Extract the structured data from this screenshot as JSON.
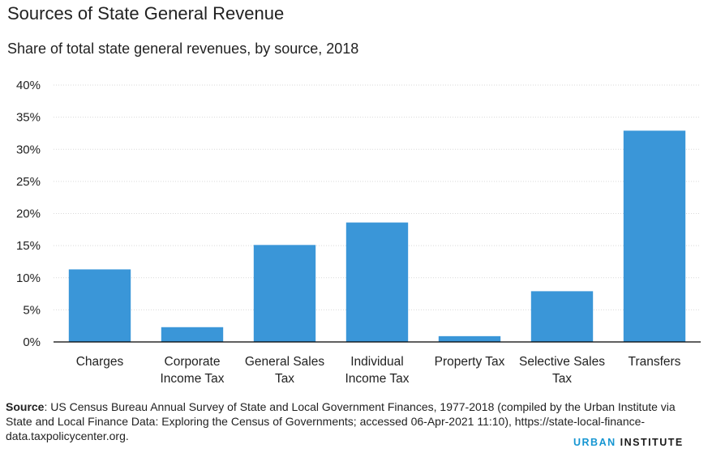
{
  "title": "Sources of State General Revenue",
  "subtitle": "Share of total state general revenues, by source, 2018",
  "source": {
    "label": "Source",
    "text": ": US Census Bureau Annual Survey of State and Local Government Finances, 1977-2018 (compiled by the Urban Institute via State and Local Finance Data: Exploring the Census of Governments; accessed 06-Apr-2021 11:10), https://state-local-finance-data.taxpolicycenter.org."
  },
  "brand": {
    "part1": "URBAN",
    "part2": " INSTITUTE"
  },
  "colors": {
    "bar": "#3a96d8",
    "grid": "#d9d9d9",
    "axis": "#000000"
  },
  "chart_data": {
    "type": "bar",
    "categories": [
      "Charges",
      "Corporate Income Tax",
      "General Sales Tax",
      "Individual Income Tax",
      "Property Tax",
      "Selective Sales Tax",
      "Transfers"
    ],
    "category_lines": [
      [
        "Charges"
      ],
      [
        "Corporate",
        "Income Tax"
      ],
      [
        "General Sales",
        "Tax"
      ],
      [
        "Individual",
        "Income Tax"
      ],
      [
        "Property Tax"
      ],
      [
        "Selective Sales",
        "Tax"
      ],
      [
        "Transfers"
      ]
    ],
    "values": [
      11.3,
      2.3,
      15.1,
      18.6,
      0.9,
      7.9,
      32.9
    ],
    "ylim": [
      0,
      40
    ],
    "yticks": [
      0,
      5,
      10,
      15,
      20,
      25,
      30,
      35,
      40
    ],
    "ytick_labels": [
      "0%",
      "5%",
      "10%",
      "15%",
      "20%",
      "25%",
      "30%",
      "35%",
      "40%"
    ],
    "grid": true
  }
}
